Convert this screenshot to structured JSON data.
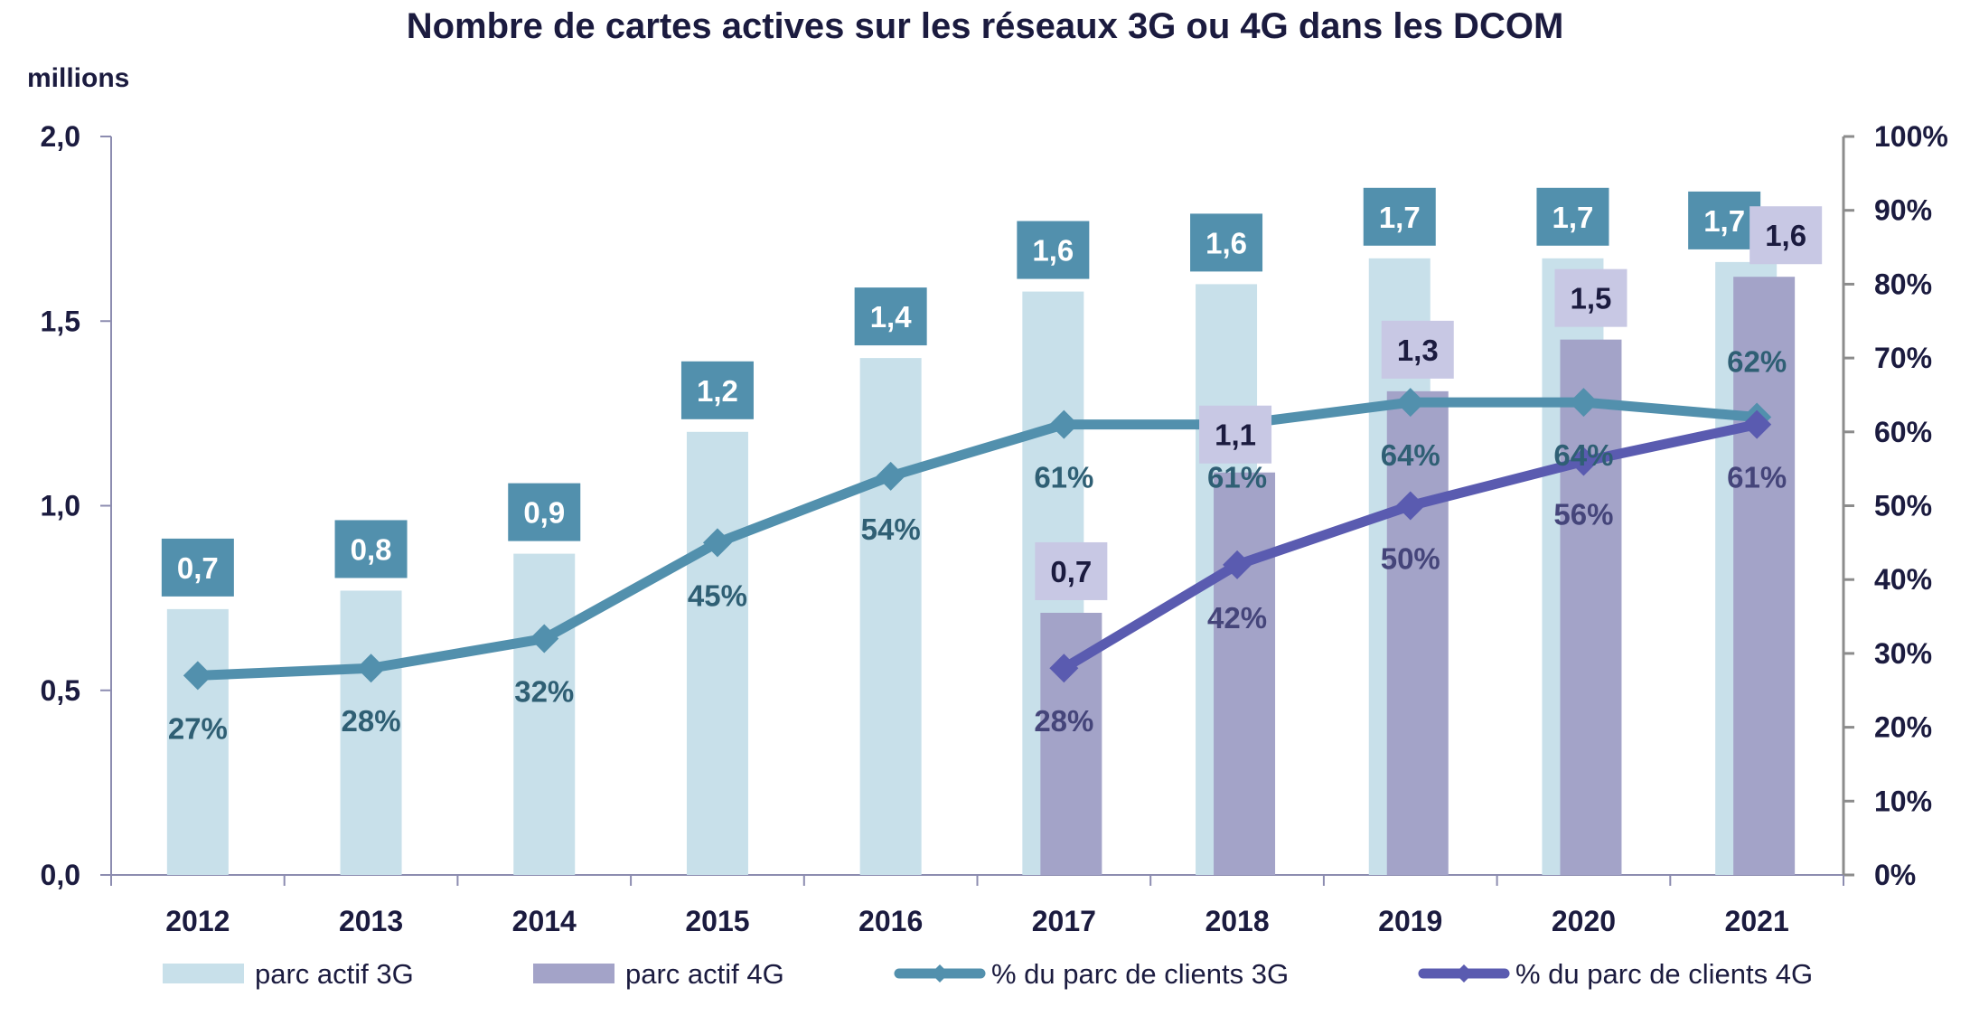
{
  "chart_data": {
    "type": "bar",
    "title": "Nombre de cartes actives sur les réseaux 3G ou 4G dans les DCOM",
    "ylabel": "millions",
    "ylim": [
      0,
      2.0
    ],
    "y2lim": [
      0,
      100
    ],
    "yticks": [
      "0,0",
      "0,5",
      "1,0",
      "1,5",
      "2,0"
    ],
    "ytick_values": [
      0,
      0.5,
      1.0,
      1.5,
      2.0
    ],
    "y2ticks": [
      "0%",
      "10%",
      "20%",
      "30%",
      "40%",
      "50%",
      "60%",
      "70%",
      "80%",
      "90%",
      "100%"
    ],
    "y2tick_values": [
      0,
      10,
      20,
      30,
      40,
      50,
      60,
      70,
      80,
      90,
      100
    ],
    "categories": [
      "2012",
      "2013",
      "2014",
      "2015",
      "2016",
      "2017",
      "2018",
      "2019",
      "2020",
      "2021"
    ],
    "grid": false,
    "legend_position": "bottom",
    "series": [
      {
        "name": "parc actif 3G",
        "kind": "bar",
        "axis": "left",
        "color": "#c8e0ea",
        "label_bg": "#5290ad",
        "values": [
          0.72,
          0.77,
          0.87,
          1.2,
          1.4,
          1.58,
          1.6,
          1.67,
          1.67,
          1.66
        ],
        "labels": [
          "0,7",
          "0,8",
          "0,9",
          "1,2",
          "1,4",
          "1,6",
          "1,6",
          "1,7",
          "1,7",
          "1,7"
        ]
      },
      {
        "name": "parc actif 4G",
        "kind": "bar",
        "axis": "left",
        "color": "#a3a3c8",
        "label_bg": "#c8c8e4",
        "values": [
          null,
          null,
          null,
          null,
          null,
          0.71,
          1.09,
          1.31,
          1.45,
          1.62
        ],
        "labels": [
          null,
          null,
          null,
          null,
          null,
          "0,7",
          "1,1",
          "1,3",
          "1,5",
          "1,6"
        ]
      },
      {
        "name": "% du parc de clients  3G",
        "kind": "line",
        "axis": "right",
        "color": "#5290ad",
        "values": [
          27,
          28,
          32,
          45,
          54,
          61,
          61,
          64,
          64,
          62
        ],
        "labels": [
          "27%",
          "28%",
          "32%",
          "45%",
          "54%",
          "61%",
          "61%",
          "64%",
          "64%",
          "62%"
        ]
      },
      {
        "name": "% du parc de clients  4G",
        "kind": "line",
        "axis": "right",
        "color": "#5a5bb0",
        "values": [
          null,
          null,
          null,
          null,
          null,
          28,
          42,
          50,
          56,
          61
        ],
        "labels": [
          null,
          null,
          null,
          null,
          null,
          "28%",
          "42%",
          "50%",
          "56%",
          "61%"
        ]
      }
    ]
  }
}
